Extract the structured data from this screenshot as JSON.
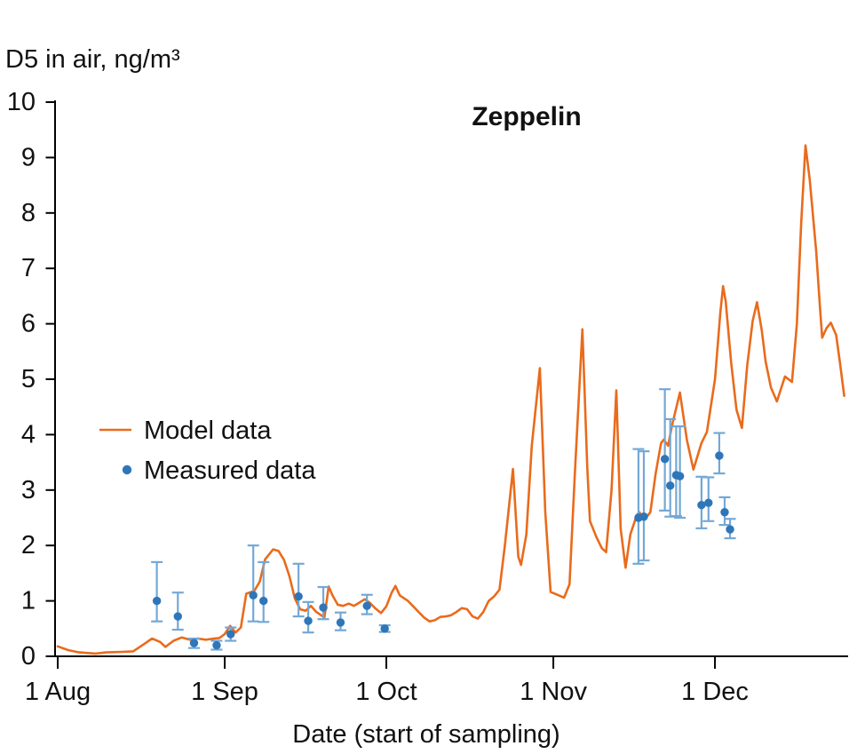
{
  "title": "Zeppelin",
  "y_axis_title": "D5 in air, ng/m³",
  "x_axis_title": "Date (start of sampling)",
  "legend": {
    "model_label": "Model data",
    "measured_label": "Measured data"
  },
  "colors": {
    "model_line": "#e96b1c",
    "measured_point": "#2e76b9",
    "error_bar": "#74a8d5",
    "axis": "#000000",
    "text": "#111111"
  },
  "chart_data": {
    "type": "line",
    "title": "Zeppelin",
    "xlabel": "Date (start of sampling)",
    "ylabel": "D5 in air, ng/m³",
    "ylim": [
      0,
      10
    ],
    "y_ticks": [
      0,
      1,
      2,
      3,
      4,
      5,
      6,
      7,
      8,
      9,
      10
    ],
    "x_ticks": [
      {
        "label": "1 Aug",
        "day": 0
      },
      {
        "label": "1 Sep",
        "day": 31
      },
      {
        "label": "1 Oct",
        "day": 61
      },
      {
        "label": "1 Nov",
        "day": 92
      },
      {
        "label": "1 Dec",
        "day": 122
      }
    ],
    "x_range_days": [
      0,
      146
    ],
    "x_unit": "days since 1 Aug",
    "grid": false,
    "legend_position": "left-middle",
    "series": [
      {
        "name": "Model data",
        "type": "line",
        "points": [
          [
            0,
            0.18
          ],
          [
            2,
            0.11
          ],
          [
            4,
            0.07
          ],
          [
            7,
            0.05
          ],
          [
            9,
            0.07
          ],
          [
            12,
            0.08
          ],
          [
            14,
            0.09
          ],
          [
            16,
            0.22
          ],
          [
            17.5,
            0.32
          ],
          [
            19,
            0.26
          ],
          [
            20,
            0.17
          ],
          [
            21.5,
            0.28
          ],
          [
            23,
            0.34
          ],
          [
            24.5,
            0.3
          ],
          [
            26,
            0.32
          ],
          [
            27.5,
            0.3
          ],
          [
            29,
            0.32
          ],
          [
            30,
            0.33
          ],
          [
            31,
            0.4
          ],
          [
            32,
            0.55
          ],
          [
            33,
            0.43
          ],
          [
            34,
            0.52
          ],
          [
            35,
            1.13
          ],
          [
            36.5,
            1.18
          ],
          [
            37.5,
            1.35
          ],
          [
            38.5,
            1.75
          ],
          [
            40,
            1.93
          ],
          [
            41,
            1.9
          ],
          [
            42,
            1.74
          ],
          [
            43,
            1.45
          ],
          [
            44,
            1.05
          ],
          [
            45,
            0.85
          ],
          [
            46,
            0.82
          ],
          [
            47,
            0.91
          ],
          [
            48,
            0.8
          ],
          [
            49.5,
            0.7
          ],
          [
            50.3,
            1.26
          ],
          [
            51,
            1.1
          ],
          [
            52,
            0.93
          ],
          [
            53,
            0.91
          ],
          [
            54,
            0.95
          ],
          [
            55,
            0.91
          ],
          [
            56,
            0.97
          ],
          [
            57,
            1.03
          ],
          [
            58,
            0.96
          ],
          [
            59,
            0.86
          ],
          [
            60,
            0.78
          ],
          [
            61,
            0.9
          ],
          [
            62,
            1.15
          ],
          [
            62.7,
            1.27
          ],
          [
            63.5,
            1.1
          ],
          [
            65,
            1.0
          ],
          [
            66,
            0.9
          ],
          [
            67,
            0.8
          ],
          [
            68,
            0.7
          ],
          [
            69,
            0.63
          ],
          [
            70,
            0.65
          ],
          [
            71,
            0.71
          ],
          [
            72,
            0.72
          ],
          [
            73,
            0.74
          ],
          [
            74,
            0.8
          ],
          [
            75,
            0.87
          ],
          [
            76,
            0.85
          ],
          [
            77,
            0.72
          ],
          [
            78,
            0.68
          ],
          [
            79,
            0.8
          ],
          [
            80,
            1.0
          ],
          [
            81,
            1.08
          ],
          [
            82,
            1.2
          ],
          [
            83,
            2.0
          ],
          [
            84.5,
            3.38
          ],
          [
            85.5,
            1.8
          ],
          [
            86,
            1.65
          ],
          [
            87,
            2.2
          ],
          [
            88,
            3.8
          ],
          [
            89.5,
            5.2
          ],
          [
            90.5,
            2.6
          ],
          [
            91.5,
            1.16
          ],
          [
            92.5,
            1.12
          ],
          [
            94,
            1.06
          ],
          [
            95,
            1.3
          ],
          [
            96,
            3.3
          ],
          [
            97.4,
            5.9
          ],
          [
            98.3,
            3.4
          ],
          [
            98.8,
            2.44
          ],
          [
            100,
            2.15
          ],
          [
            101,
            1.95
          ],
          [
            101.8,
            1.88
          ],
          [
            102.8,
            3.0
          ],
          [
            103.7,
            4.8
          ],
          [
            104.5,
            2.3
          ],
          [
            105.4,
            1.6
          ],
          [
            106.3,
            2.2
          ],
          [
            107.5,
            2.55
          ],
          [
            108,
            2.6
          ],
          [
            108.8,
            2.45
          ],
          [
            110,
            2.6
          ],
          [
            111,
            3.3
          ],
          [
            112,
            3.85
          ],
          [
            112.5,
            3.91
          ],
          [
            113.3,
            3.8
          ],
          [
            114,
            4.15
          ],
          [
            115.5,
            4.76
          ],
          [
            116.8,
            3.9
          ],
          [
            118,
            3.37
          ],
          [
            119.5,
            3.85
          ],
          [
            120.5,
            4.05
          ],
          [
            122,
            5.0
          ],
          [
            123,
            6.2
          ],
          [
            123.5,
            6.68
          ],
          [
            124,
            6.4
          ],
          [
            125,
            5.3
          ],
          [
            126,
            4.45
          ],
          [
            127,
            4.12
          ],
          [
            128,
            5.25
          ],
          [
            129,
            6.05
          ],
          [
            129.8,
            6.39
          ],
          [
            130.7,
            5.88
          ],
          [
            131.4,
            5.32
          ],
          [
            132.4,
            4.85
          ],
          [
            133.5,
            4.6
          ],
          [
            135,
            5.05
          ],
          [
            136.3,
            4.95
          ],
          [
            137.2,
            6.0
          ],
          [
            138,
            7.8
          ],
          [
            138.8,
            9.22
          ],
          [
            139.6,
            8.6
          ],
          [
            140.8,
            7.3
          ],
          [
            141.5,
            6.3
          ],
          [
            141.9,
            5.75
          ],
          [
            142.7,
            5.92
          ],
          [
            143.5,
            6.02
          ],
          [
            144.5,
            5.8
          ],
          [
            145.2,
            5.3
          ],
          [
            146,
            4.7
          ]
        ]
      },
      {
        "name": "Measured data",
        "type": "scatter_with_error_bars",
        "points": [
          {
            "day": 18.4,
            "value": 1.0,
            "lo": 0.63,
            "hi": 1.7
          },
          {
            "day": 22.3,
            "value": 0.72,
            "lo": 0.48,
            "hi": 1.15
          },
          {
            "day": 25.3,
            "value": 0.24,
            "lo": 0.15,
            "hi": 0.32
          },
          {
            "day": 29.5,
            "value": 0.2,
            "lo": 0.12,
            "hi": 0.28
          },
          {
            "day": 32.1,
            "value": 0.4,
            "lo": 0.28,
            "hi": 0.52
          },
          {
            "day": 36.3,
            "value": 1.1,
            "lo": 0.63,
            "hi": 2.0
          },
          {
            "day": 38.2,
            "value": 1.0,
            "lo": 0.62,
            "hi": 1.7
          },
          {
            "day": 44.7,
            "value": 1.08,
            "lo": 0.72,
            "hi": 1.67
          },
          {
            "day": 46.5,
            "value": 0.64,
            "lo": 0.43,
            "hi": 0.98
          },
          {
            "day": 49.3,
            "value": 0.88,
            "lo": 0.67,
            "hi": 1.25
          },
          {
            "day": 52.5,
            "value": 0.61,
            "lo": 0.47,
            "hi": 0.79
          },
          {
            "day": 57.4,
            "value": 0.91,
            "lo": 0.76,
            "hi": 1.11
          },
          {
            "day": 60.7,
            "value": 0.5,
            "lo": 0.44,
            "hi": 0.56
          },
          {
            "day": 107.8,
            "value": 2.5,
            "lo": 1.67,
            "hi": 3.74
          },
          {
            "day": 108.8,
            "value": 2.52,
            "lo": 1.73,
            "hi": 3.7
          },
          {
            "day": 112.7,
            "value": 3.56,
            "lo": 2.63,
            "hi": 4.82
          },
          {
            "day": 113.7,
            "value": 3.08,
            "lo": 2.52,
            "hi": 4.28
          },
          {
            "day": 114.8,
            "value": 3.27,
            "lo": 2.53,
            "hi": 4.15
          },
          {
            "day": 115.5,
            "value": 3.25,
            "lo": 2.5,
            "hi": 4.15
          },
          {
            "day": 119.5,
            "value": 2.73,
            "lo": 2.31,
            "hi": 3.24
          },
          {
            "day": 120.8,
            "value": 2.77,
            "lo": 2.44,
            "hi": 3.23
          },
          {
            "day": 122.8,
            "value": 3.62,
            "lo": 3.3,
            "hi": 4.03
          },
          {
            "day": 123.8,
            "value": 2.6,
            "lo": 2.37,
            "hi": 2.87
          },
          {
            "day": 124.8,
            "value": 2.29,
            "lo": 2.13,
            "hi": 2.48
          }
        ]
      }
    ]
  }
}
